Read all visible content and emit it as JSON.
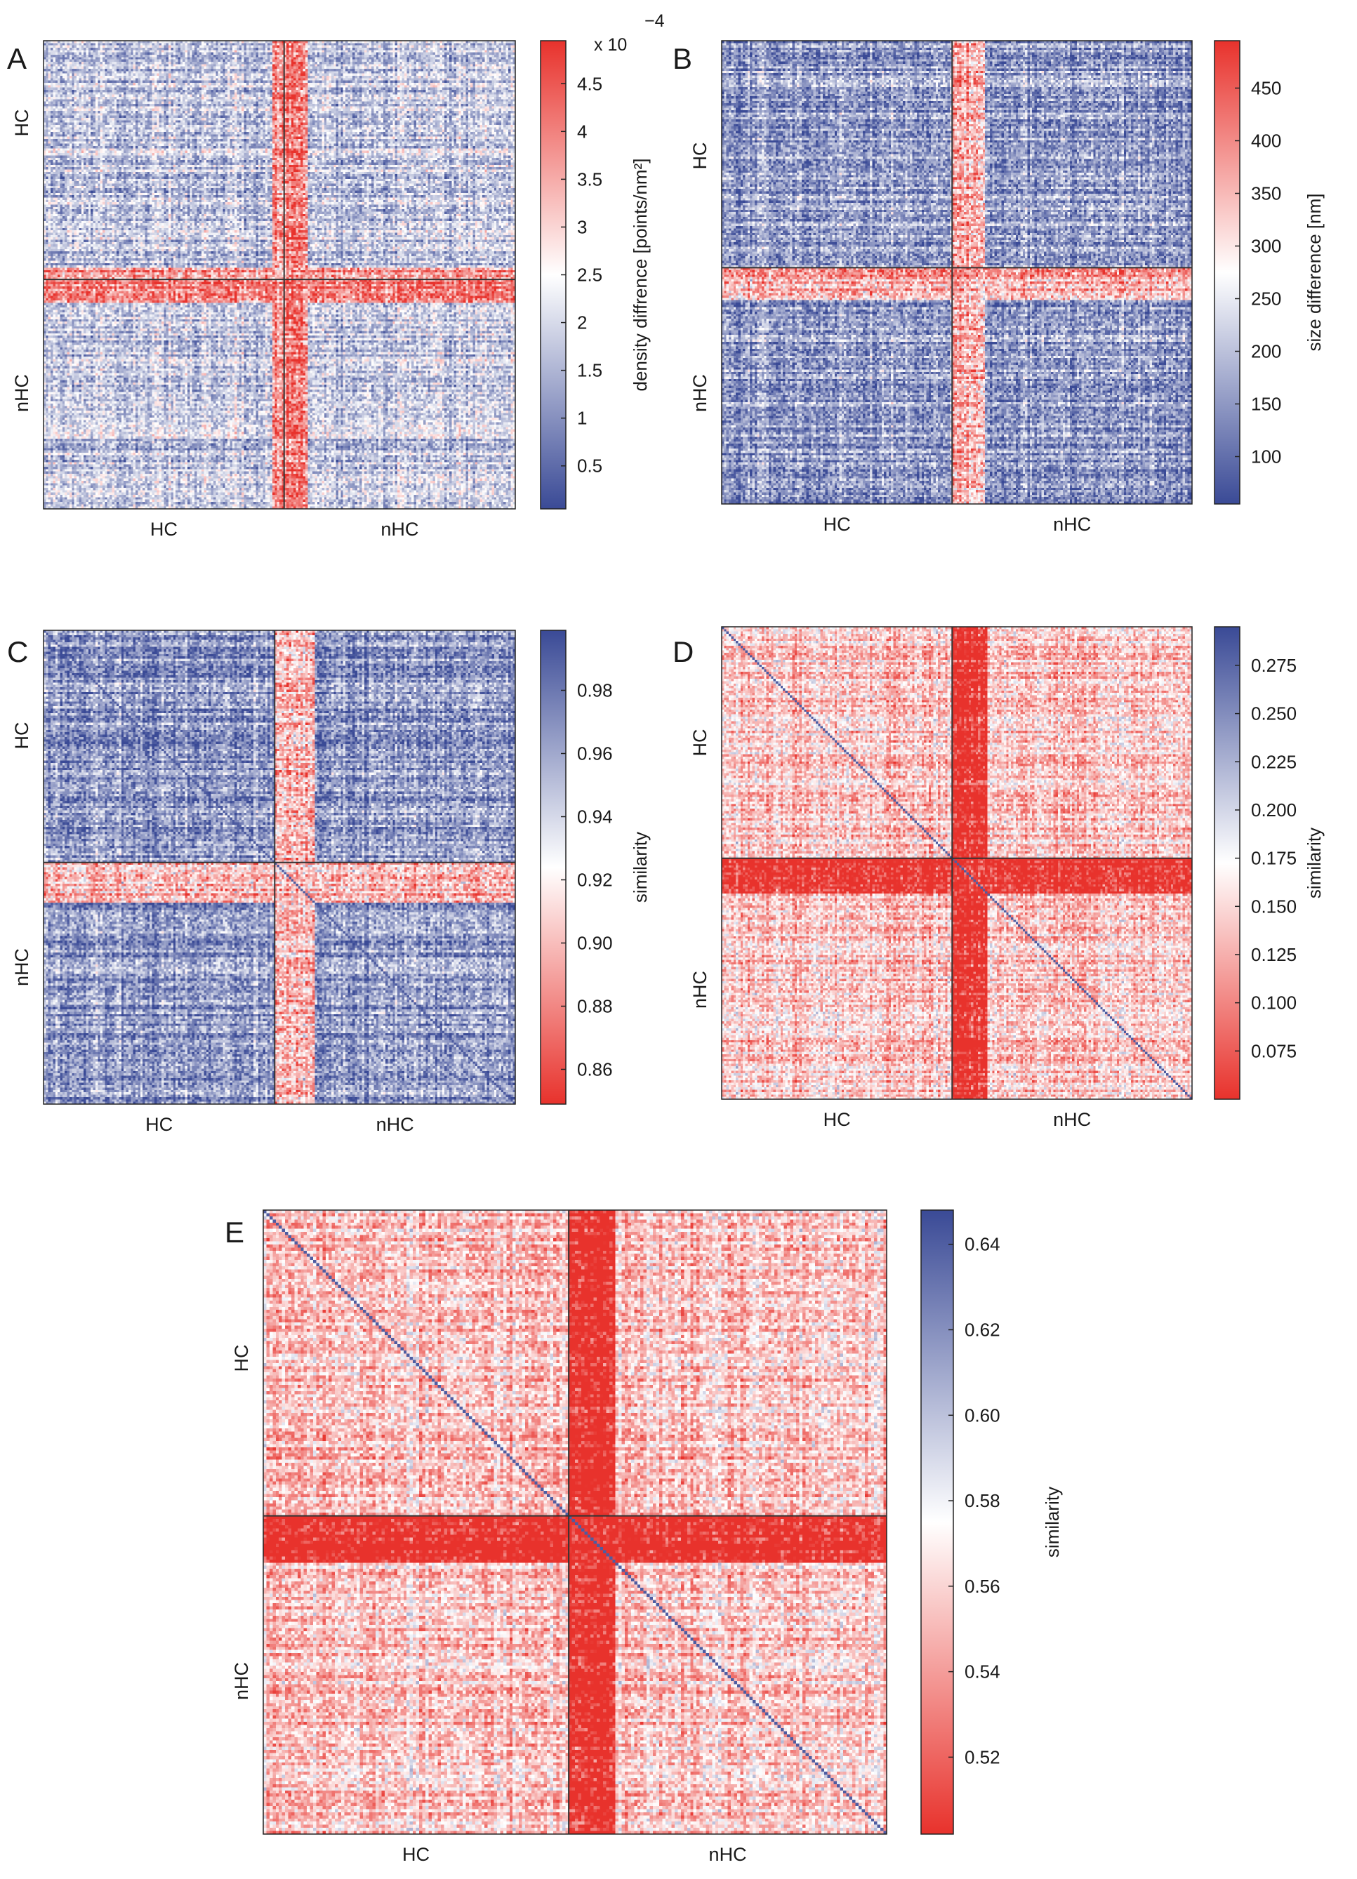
{
  "chart_data": [
    {
      "panel": "A",
      "type": "heatmap",
      "group_labels": [
        "HC",
        "nHC"
      ],
      "x_tick_labels": [
        "HC",
        "nHC"
      ],
      "y_tick_labels": [
        "HC",
        "nHC"
      ],
      "colorbar": {
        "label": "density diffrence [points/nm²]",
        "scale_text": "x 10",
        "scale_exponent": "−4",
        "ticks": [
          "0.5",
          "1",
          "1.5",
          "2",
          "2.5",
          "3",
          "3.5",
          "4",
          "4.5"
        ],
        "tick_values": [
          0.5,
          1,
          1.5,
          2,
          2.5,
          3,
          3.5,
          4,
          4.5
        ],
        "range": [
          0.05,
          4.95
        ],
        "low_color": "#3a4a96",
        "mid_color": "#ffffff",
        "high_color": "#e8322c"
      },
      "hc_fraction": 0.51,
      "base_level": 0.35,
      "stripe_bands": [
        [
          0.5,
          0.565
        ]
      ],
      "cross_band": [
        0.485,
        0.56
      ],
      "diagonal": false
    },
    {
      "panel": "B",
      "type": "heatmap",
      "group_labels": [
        "HC",
        "nHC"
      ],
      "x_tick_labels": [
        "HC",
        "nHC"
      ],
      "y_tick_labels": [
        "HC",
        "nHC"
      ],
      "colorbar": {
        "label": "size difference [nm]",
        "ticks": [
          "100",
          "150",
          "200",
          "250",
          "300",
          "350",
          "400",
          "450"
        ],
        "tick_values": [
          100,
          150,
          200,
          250,
          300,
          350,
          400,
          450
        ],
        "range": [
          55,
          495
        ],
        "low_color": "#3a4a96",
        "mid_color": "#ffffff",
        "high_color": "#e8322c"
      },
      "hc_fraction": 0.49,
      "base_level": 0.25,
      "stripe_bands": [
        [
          0.49,
          0.55
        ]
      ],
      "cross_band": [
        0.49,
        0.56
      ],
      "diagonal": false
    },
    {
      "panel": "C",
      "type": "heatmap",
      "group_labels": [
        "HC",
        "nHC"
      ],
      "x_tick_labels": [
        "HC",
        "nHC"
      ],
      "y_tick_labels": [
        "HC",
        "nHC"
      ],
      "colorbar": {
        "label": "similarity",
        "ticks": [
          "0.86",
          "0.88",
          "0.90",
          "0.92",
          "0.94",
          "0.96",
          "0.98"
        ],
        "tick_values": [
          0.86,
          0.88,
          0.9,
          0.92,
          0.94,
          0.96,
          0.98
        ],
        "range": [
          0.849,
          0.999
        ],
        "low_color": "#e8322c",
        "mid_color": "#ffffff",
        "high_color": "#3a4a96"
      },
      "hc_fraction": 0.49,
      "base_level": 0.78,
      "stripe_bands": [
        [
          0.5,
          0.56
        ]
      ],
      "cross_band": [
        0.49,
        0.58
      ],
      "diagonal": true
    },
    {
      "panel": "D",
      "type": "heatmap",
      "group_labels": [
        "HC",
        "nHC"
      ],
      "x_tick_labels": [
        "HC",
        "nHC"
      ],
      "y_tick_labels": [
        "HC",
        "nHC"
      ],
      "colorbar": {
        "label": "similarity",
        "ticks": [
          "0.075",
          "0.100",
          "0.125",
          "0.150",
          "0.175",
          "0.200",
          "0.225",
          "0.250",
          "0.275"
        ],
        "tick_values": [
          0.075,
          0.1,
          0.125,
          0.15,
          0.175,
          0.2,
          0.225,
          0.25,
          0.275
        ],
        "range": [
          0.05,
          0.295
        ],
        "low_color": "#e8322c",
        "mid_color": "#ffffff",
        "high_color": "#3a4a96"
      },
      "hc_fraction": 0.49,
      "base_level": 0.38,
      "stripe_bands": [
        [
          0.5,
          0.56
        ]
      ],
      "cross_band": [
        0.49,
        0.57
      ],
      "diagonal": true
    },
    {
      "panel": "E",
      "type": "heatmap",
      "group_labels": [
        "HC",
        "nHC"
      ],
      "x_tick_labels": [
        "HC",
        "nHC"
      ],
      "y_tick_labels": [
        "HC",
        "nHC"
      ],
      "colorbar": {
        "label": "similarity",
        "ticks": [
          "0.52",
          "0.54",
          "0.56",
          "0.58",
          "0.60",
          "0.62",
          "0.64"
        ],
        "tick_values": [
          0.52,
          0.54,
          0.56,
          0.58,
          0.6,
          0.62,
          0.64
        ],
        "range": [
          0.502,
          0.648
        ],
        "low_color": "#e8322c",
        "mid_color": "#ffffff",
        "high_color": "#3a4a96"
      },
      "hc_fraction": 0.49,
      "base_level": 0.36,
      "stripe_bands": [
        [
          0.49,
          0.56
        ]
      ],
      "cross_band": [
        0.49,
        0.57
      ],
      "diagonal": true
    }
  ]
}
